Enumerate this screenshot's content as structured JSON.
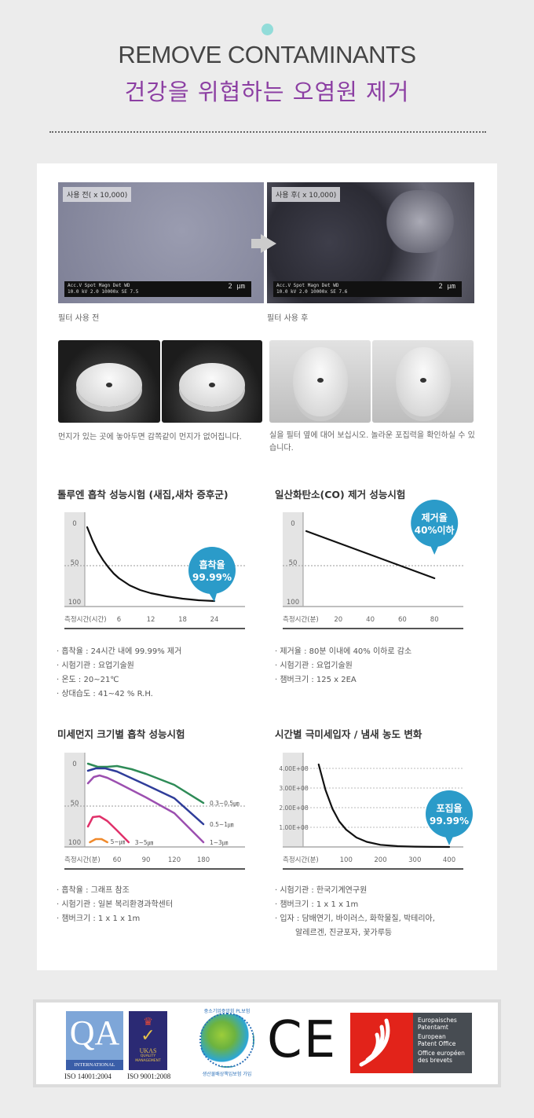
{
  "header": {
    "title_en": "REMOVE CONTAMINANTS",
    "title_ko": "건강을 위협하는 오염원 제거"
  },
  "sem": {
    "before": {
      "tag": "사용 전( x 10,000)",
      "bar_line1": "Acc.V  Spot Magn   Det  WD",
      "bar_line2": "10.0 kV 2.0  10000x  SE   7.5",
      "scale": "2 μm",
      "caption": "필터 사용 전"
    },
    "after": {
      "tag": "사용 후( x 10,000)",
      "bar_line1": "Acc.V  Spot Magn   Det  WD",
      "bar_line2": "10.0 kV 2.0  10000x  SE   7.6",
      "scale": "2 μm",
      "caption": "필터 사용 후"
    }
  },
  "photos": {
    "left_caption": "먼지가 있는 곳에 놓아두면 감쪽같이 먼지가 없어집니다.",
    "right_caption": "실을 필터 옆에 대어 보십시오. 놀라운 포집력을 확인하실 수 있습니다."
  },
  "colors": {
    "accent_purple": "#8c3fa3",
    "bubble": "#2b9bc9",
    "teal_dot": "#92dcd9"
  },
  "chart_data": [
    {
      "type": "line",
      "title": "톨루엔 흡착 성능시험 (새집,새차 증후군)",
      "xlabel": "측정시간(시간)",
      "x_ticks": [
        6,
        12,
        18,
        24
      ],
      "y_ticks": [
        0,
        50,
        100
      ],
      "ylim": [
        0,
        100
      ],
      "y_inverted": true,
      "reference_line": 50,
      "series": [
        {
          "color": "#111111",
          "points": [
            [
              0,
              5
            ],
            [
              1,
              22
            ],
            [
              2,
              36
            ],
            [
              3,
              47
            ],
            [
              4,
              56
            ],
            [
              5,
              64
            ],
            [
              6,
              70
            ],
            [
              8,
              79
            ],
            [
              10,
              85
            ],
            [
              12,
              89
            ],
            [
              15,
              93
            ],
            [
              18,
              96
            ],
            [
              21,
              98
            ],
            [
              24,
              99
            ]
          ]
        }
      ],
      "bubble": {
        "label1": "흡착율",
        "label2": "99.99%",
        "x": 24,
        "y": 100
      },
      "notes": [
        "흡착율 :  24시간 내에 99.99% 제거",
        "시험기관 : 요업기술원",
        "온도 : 20~21℃",
        "상대습도 : 41~42 % R.H."
      ]
    },
    {
      "type": "line",
      "title": "일산화탄소(CO) 제거 성능시험",
      "xlabel": "측정시간(분)",
      "x_ticks": [
        20,
        40,
        60,
        80
      ],
      "y_ticks": [
        0,
        50,
        100
      ],
      "ylim": [
        0,
        100
      ],
      "y_inverted": true,
      "reference_line": 50,
      "series": [
        {
          "color": "#111111",
          "points": [
            [
              0,
              10
            ],
            [
              80,
              70
            ]
          ]
        }
      ],
      "bubble": {
        "label1": "제거율",
        "label2": "40%이하",
        "x": 80,
        "y": 40
      },
      "notes": [
        "제거율 : 80분 이내에 40% 이하로 감소",
        "시험기관 : 요업기술원",
        "챔버크기 : 125 x 2EA"
      ]
    },
    {
      "type": "line",
      "title": "미세먼지 크기별 흡착 성능시험",
      "xlabel": "측정시간(분)",
      "x_ticks": [
        60,
        90,
        120,
        180
      ],
      "y_ticks": [
        0,
        50,
        100
      ],
      "ylim": [
        0,
        100
      ],
      "y_inverted": true,
      "reference_line": 50,
      "series": [
        {
          "name": "0.3~0.5㎛",
          "color": "#2e8b57",
          "points": [
            [
              30,
              0
            ],
            [
              40,
              4
            ],
            [
              50,
              4
            ],
            [
              60,
              3
            ],
            [
              75,
              7
            ],
            [
              90,
              13
            ],
            [
              120,
              27
            ],
            [
              180,
              50
            ]
          ]
        },
        {
          "name": "0.5~1㎛",
          "color": "#2f3d9a",
          "points": [
            [
              30,
              9
            ],
            [
              38,
              6
            ],
            [
              48,
              6
            ],
            [
              60,
              10
            ],
            [
              90,
              27
            ],
            [
              120,
              44
            ],
            [
              180,
              77
            ]
          ]
        },
        {
          "name": "1~3㎛",
          "color": "#9c4fb0",
          "points": [
            [
              30,
              25
            ],
            [
              36,
              17
            ],
            [
              42,
              15
            ],
            [
              50,
              18
            ],
            [
              60,
              24
            ],
            [
              90,
              43
            ],
            [
              120,
              63
            ],
            [
              180,
              100
            ]
          ]
        },
        {
          "name": "3~5㎛",
          "color": "#e0316a",
          "points": [
            [
              30,
              80
            ],
            [
              35,
              68
            ],
            [
              42,
              67
            ],
            [
              50,
              73
            ],
            [
              60,
              85
            ],
            [
              72,
              100
            ]
          ]
        },
        {
          "name": "5~㎛",
          "color": "#f08a2c",
          "points": [
            [
              32,
              100
            ],
            [
              38,
              96
            ],
            [
              44,
              96
            ],
            [
              50,
              100
            ]
          ]
        }
      ],
      "notes": [
        "흡착율 :  그래프 참조",
        "시험기관 : 일본 복리환경과학센터",
        "챔버크기 : 1 x 1 x 1m"
      ]
    },
    {
      "type": "line",
      "title": "시간별 극미세입자 / 냄새 농도 변화",
      "xlabel": "측정시간(분)",
      "x_ticks": [
        100,
        200,
        300,
        400
      ],
      "y_ticks": [
        "1.00E+08",
        "2.00E+08",
        "3.00E+08",
        "4.00E+08"
      ],
      "ylim": [
        0,
        400000000
      ],
      "series": [
        {
          "color": "#111111",
          "points": [
            [
              20,
              420000000
            ],
            [
              40,
              290000000
            ],
            [
              60,
              195000000
            ],
            [
              80,
              130000000
            ],
            [
              100,
              88000000
            ],
            [
              130,
              48000000
            ],
            [
              160,
              26000000
            ],
            [
              200,
              11000000
            ],
            [
              250,
              4000000
            ],
            [
              300,
              1500000
            ],
            [
              350,
              500000
            ],
            [
              400,
              0
            ]
          ]
        }
      ],
      "bubble": {
        "label1": "포집율",
        "label2": "99.99%",
        "x": 400,
        "y": 0
      },
      "notes": [
        "시험기관 : 한국기계연구원",
        "챔버크기 : 1 x 1 x 1m",
        "입자 : 담배연기, 바이러스, 화학물질, 박테리아,",
        "알레르겐, 진균포자, 꽃가루등"
      ]
    }
  ],
  "certifications": {
    "qa": {
      "mark": "QA",
      "strip": "INTERNATIONAL",
      "caption": "ISO 14001:2004"
    },
    "ukas": {
      "name": "UKAS",
      "sub": "QUALITY MANAGEMENT",
      "caption": "ISO 9001:2008"
    },
    "pl": {
      "top": "중소기업중앙회 PL보험",
      "bottom": "생산물배상책임보험 가입"
    },
    "ce": "CE",
    "epo": [
      "Europaisches",
      "Patentamt",
      "European",
      "Patent Office",
      "Office européen",
      "des brevets"
    ]
  }
}
